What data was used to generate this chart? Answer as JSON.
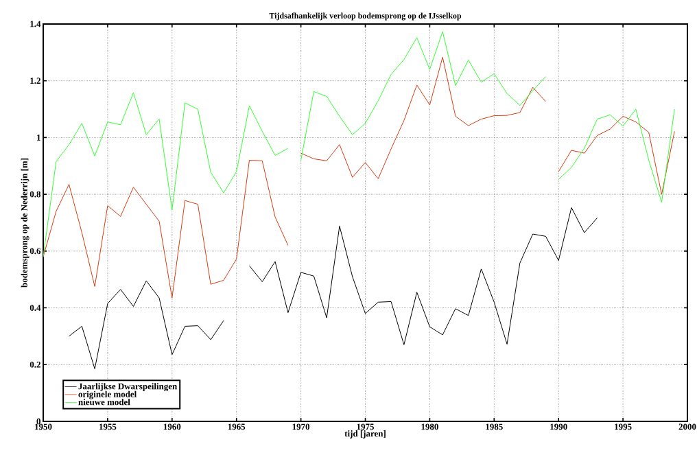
{
  "chart_data": {
    "type": "line",
    "title": "Tijdsafhankelijk verloop bodemsprong op de IJsselkop",
    "xlabel": "tijd [jaren]",
    "ylabel": "bodemsprong op de Nederrijn [m]",
    "xlim": [
      1950,
      2000
    ],
    "ylim": [
      0,
      1.4
    ],
    "xticks": [
      1950,
      1955,
      1960,
      1965,
      1970,
      1975,
      1980,
      1985,
      1990,
      1995,
      2000
    ],
    "yticks": [
      0,
      0.2,
      0.4,
      0.6,
      0.8,
      1,
      1.2,
      1.4
    ],
    "grid": true,
    "legend": "bottom left",
    "marker": "none",
    "line_style": "solid",
    "series": [
      {
        "name": "Jaarlijkse Dwarspeilingen",
        "color": "#000000",
        "x": [
          1952,
          1953,
          1954,
          1955,
          1956,
          1957,
          1958,
          1959,
          1960,
          1961,
          1962,
          1963,
          1964,
          1965,
          1966,
          1967,
          1968,
          1969,
          1970,
          1971,
          1972,
          1973,
          1974,
          1975,
          1976,
          1977,
          1978,
          1979,
          1980,
          1981,
          1982,
          1983,
          1984,
          1985,
          1986,
          1987,
          1988,
          1989,
          1990,
          1991,
          1992,
          1993
        ],
        "values": [
          0.3,
          0.335,
          0.185,
          0.415,
          0.465,
          0.405,
          0.495,
          0.435,
          0.235,
          0.335,
          0.337,
          0.288,
          0.355,
          null,
          0.548,
          0.492,
          0.563,
          0.383,
          0.525,
          0.512,
          0.365,
          0.688,
          0.51,
          0.38,
          0.42,
          0.422,
          0.27,
          0.455,
          0.333,
          0.305,
          0.397,
          0.373,
          0.537,
          0.42,
          0.272,
          0.558,
          0.66,
          0.652,
          0.567,
          0.753,
          0.665,
          0.717
        ]
      },
      {
        "name": "originele model",
        "color": "#d83a10",
        "x": [
          1950,
          1951,
          1952,
          1953,
          1954,
          1955,
          1956,
          1957,
          1958,
          1959,
          1960,
          1961,
          1962,
          1963,
          1964,
          1965,
          1966,
          1967,
          1968,
          1969,
          1969.5,
          1970,
          1971,
          1972,
          1973,
          1974,
          1975,
          1976,
          1977,
          1978,
          1979,
          1980,
          1981,
          1982,
          1983,
          1984,
          1985,
          1986,
          1987,
          1988,
          1989,
          1989.5,
          1990,
          1991,
          1992,
          1993,
          1994,
          1995,
          1996,
          1997,
          1998,
          1999
        ],
        "values": [
          0.58,
          0.74,
          0.835,
          0.665,
          0.475,
          0.76,
          0.722,
          0.825,
          0.765,
          0.705,
          0.435,
          0.778,
          0.765,
          0.483,
          0.497,
          0.572,
          0.92,
          0.918,
          0.72,
          0.62,
          null,
          0.945,
          0.925,
          0.918,
          0.975,
          0.86,
          0.912,
          0.855,
          0.96,
          1.06,
          1.185,
          1.115,
          1.283,
          1.075,
          1.042,
          1.065,
          1.077,
          1.078,
          1.088,
          1.177,
          1.127,
          null,
          0.88,
          0.955,
          0.945,
          1.007,
          1.03,
          1.075,
          1.055,
          1.018,
          0.8,
          1.022
        ]
      },
      {
        "name": "nieuwe model",
        "color": "#33ff33",
        "x": [
          1950,
          1951,
          1952,
          1953,
          1954,
          1955,
          1956,
          1957,
          1958,
          1959,
          1960,
          1961,
          1962,
          1963,
          1964,
          1965,
          1966,
          1967,
          1968,
          1969,
          1969.5,
          1970,
          1971,
          1972,
          1973,
          1974,
          1975,
          1976,
          1977,
          1978,
          1979,
          1980,
          1981,
          1982,
          1983,
          1984,
          1985,
          1986,
          1987,
          1988,
          1989,
          1989.5,
          1990,
          1991,
          1992,
          1993,
          1994,
          1995,
          1996,
          1997,
          1998,
          1999
        ],
        "values": [
          0.58,
          0.915,
          0.975,
          1.05,
          0.935,
          1.055,
          1.045,
          1.158,
          1.01,
          1.065,
          0.745,
          1.122,
          1.1,
          0.878,
          0.805,
          0.88,
          1.112,
          1.022,
          0.937,
          0.962,
          null,
          0.92,
          1.162,
          1.145,
          1.075,
          1.01,
          1.05,
          1.13,
          1.222,
          1.275,
          1.352,
          1.24,
          1.373,
          1.183,
          1.273,
          1.195,
          1.225,
          1.155,
          1.113,
          1.165,
          1.215,
          null,
          0.852,
          0.895,
          0.962,
          1.065,
          1.08,
          1.04,
          1.1,
          0.92,
          0.772,
          1.1
        ]
      }
    ]
  }
}
